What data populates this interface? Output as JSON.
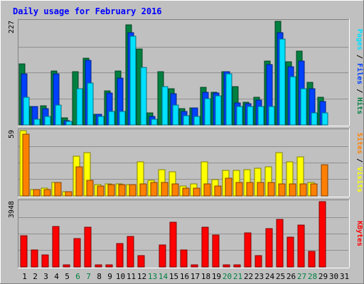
{
  "chart_data": {
    "type": "bar",
    "title": "Daily usage for February 2016",
    "x": [
      "1",
      "2",
      "3",
      "4",
      "5",
      "6",
      "7",
      "8",
      "9",
      "10",
      "11",
      "12",
      "13",
      "14",
      "15",
      "16",
      "17",
      "18",
      "19",
      "20",
      "21",
      "22",
      "23",
      "24",
      "25",
      "26",
      "27",
      "28",
      "29",
      "30",
      "31"
    ],
    "weekend_days": [
      "6",
      "7",
      "13",
      "14",
      "20",
      "21",
      "27",
      "28"
    ],
    "colors": {
      "hits": "#008040",
      "files": "#0040ff",
      "pages": "#00e0ff",
      "visits": "#ffff00",
      "sites": "#ff8000",
      "kbytes": "#ff0000",
      "title": "#0000ff",
      "weekend_label": "#008040",
      "background": "#c0c0c0"
    },
    "panels": [
      {
        "name": "hits-files-pages",
        "max_label": "227",
        "ylim": [
          0,
          227
        ],
        "legend": [
          "Pages",
          "Files",
          "Hits"
        ],
        "series": [
          {
            "name": "Hits",
            "color": "#008040",
            "values": [
              134,
              40,
              42,
              118,
              15,
              116,
              146,
              24,
              74,
              118,
              219,
              167,
              26,
              116,
              80,
              36,
              38,
              82,
              72,
              116,
              84,
              50,
              60,
              140,
              227,
              138,
              162,
              94,
              60,
              0,
              0
            ]
          },
          {
            "name": "Files",
            "color": "#0040ff",
            "values": [
              112,
              40,
              36,
              112,
              10,
              0,
              142,
              24,
              70,
              102,
              202,
              0,
              18,
              0,
              68,
              30,
              38,
              72,
              70,
              116,
              48,
              46,
              54,
              132,
              202,
              128,
              140,
              80,
              52,
              0,
              0
            ]
          },
          {
            "name": "Pages",
            "color": "#00e0ff",
            "values": [
              60,
              12,
              18,
              44,
              8,
              80,
              92,
              18,
              30,
              30,
              194,
              126,
              12,
              84,
              44,
              20,
              18,
              58,
              64,
              112,
              40,
              40,
              40,
              40,
              188,
              106,
              80,
              26,
              26,
              0,
              0
            ]
          }
        ]
      },
      {
        "name": "visits-sites",
        "max_label": "59",
        "ylim": [
          0,
          59
        ],
        "legend": [
          "Sites",
          "Visits"
        ],
        "series": [
          {
            "name": "Visits",
            "color": "#ffff00",
            "values": [
              59,
              6,
              7,
              12,
              4,
              36,
              39,
              10,
              11,
              11,
              10,
              31,
              14,
              24,
              22,
              9,
              11,
              31,
              15,
              23,
              23,
              24,
              25,
              26,
              39,
              31,
              35,
              12,
              0,
              0,
              0
            ]
          },
          {
            "name": "Sites",
            "color": "#ff8000",
            "values": [
              56,
              6,
              6,
              12,
              4,
              26,
              14,
              9,
              10,
              10,
              10,
              11,
              12,
              12,
              11,
              7,
              7,
              11,
              9,
              16,
              12,
              12,
              12,
              12,
              11,
              11,
              11,
              11,
              28,
              0,
              0
            ]
          }
        ]
      },
      {
        "name": "kbytes",
        "max_label": "3948",
        "ylim": [
          0,
          3948
        ],
        "legend": [
          "KBytes"
        ],
        "series": [
          {
            "name": "KBytes",
            "color": "#ff0000",
            "values": [
              1885,
              1040,
              718,
              2464,
              129,
              1712,
              2384,
              129,
              129,
              1410,
              1846,
              688,
              0,
              1346,
              2717,
              1029,
              129,
              2404,
              1910,
              129,
              129,
              2043,
              688,
              2316,
              2871,
              1790,
              2526,
              958,
              3948,
              0,
              0
            ]
          }
        ]
      }
    ]
  }
}
